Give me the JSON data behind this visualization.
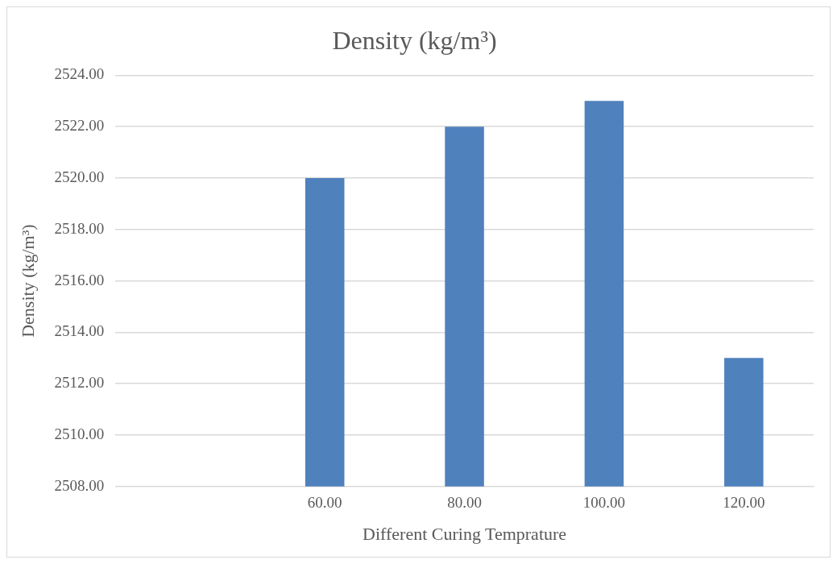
{
  "chart_data": {
    "type": "bar",
    "title": "Density (kg/m³)",
    "xlabel": "Different Curing Temprature",
    "ylabel": "Density (kg/m³)",
    "categories": [
      null,
      "60.00",
      "80.00",
      "100.00",
      "120.00"
    ],
    "values": [
      null,
      2520,
      2522,
      2523,
      2513
    ],
    "color": "#4f81bd",
    "ylim": [
      2508,
      2524
    ],
    "yticks": [
      {
        "value": 2508,
        "label": "2508.00"
      },
      {
        "value": 2510,
        "label": "2510.00"
      },
      {
        "value": 2512,
        "label": "2512.00"
      },
      {
        "value": 2514,
        "label": "2514.00"
      },
      {
        "value": 2516,
        "label": "2516.00"
      },
      {
        "value": 2518,
        "label": "2518.00"
      },
      {
        "value": 2520,
        "label": "2520.00"
      },
      {
        "value": 2522,
        "label": "2522.00"
      },
      {
        "value": 2524,
        "label": "2524.00"
      }
    ],
    "grid": "y",
    "legend": false
  }
}
